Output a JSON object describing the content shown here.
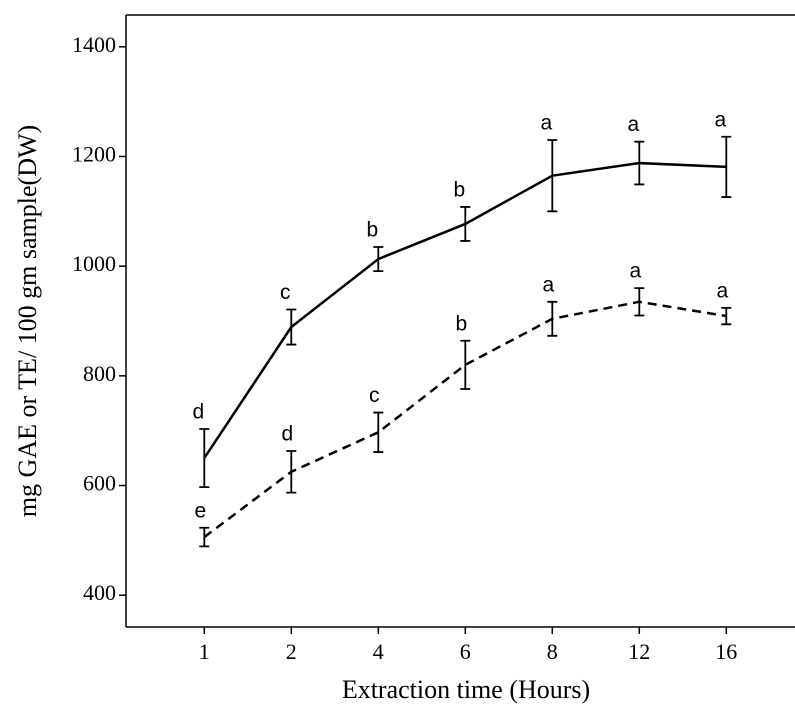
{
  "chart_data": {
    "type": "line",
    "x_label": "Extraction time (Hours)",
    "y_label": "mg GAE or TE/ 100 gm sample(DW)",
    "categories": [
      "1",
      "2",
      "4",
      "6",
      "8",
      "12",
      "16"
    ],
    "series": [
      {
        "color": "#000000",
        "dash": "solid",
        "values": [
          650,
          889,
          1013,
          1077,
          1165,
          1188,
          1181
        ],
        "errors": [
          53,
          32,
          22,
          31,
          65,
          39,
          55
        ],
        "annotations": [
          "d",
          "c",
          "b",
          "b",
          "a",
          "a",
          "a"
        ]
      },
      {
        "color": "#000000",
        "dash": "dashed",
        "values": [
          506,
          625,
          697,
          820,
          904,
          935,
          909
        ],
        "errors": [
          17,
          38,
          36,
          44,
          31,
          25,
          15
        ],
        "annotations": [
          "e",
          "d",
          "c",
          "b",
          "a",
          "a",
          "a"
        ]
      }
    ],
    "ylim": [
      342,
      1458
    ],
    "yticks": [
      400,
      600,
      800,
      1000,
      1200,
      1400
    ],
    "grid": false
  }
}
